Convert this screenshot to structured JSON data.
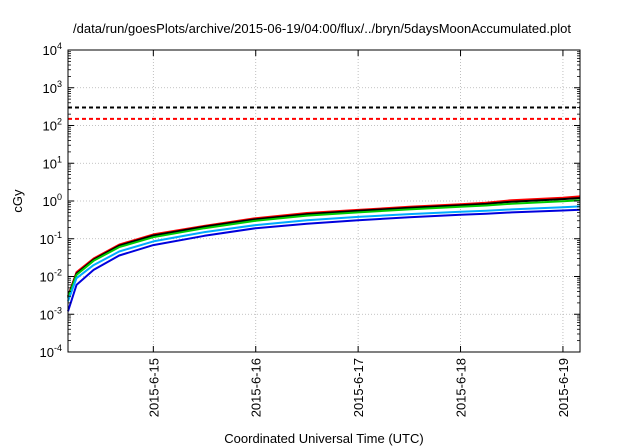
{
  "chart_data": {
    "type": "line",
    "title": "/data/run/goesPlots/archive/2015-06-19/04:00/flux/../bryn/5daysMoonAccumulated.plot",
    "xlabel": "Coordinated Universal Time (UTC)",
    "ylabel": "cGy",
    "y_scale": "log",
    "ylim": [
      0.0001,
      10000
    ],
    "xlim": [
      "2015-06-14T04:00",
      "2015-06-19T04:00"
    ],
    "grid": true,
    "x_ticks": [
      "2015-6-15",
      "2015-6-16",
      "2015-6-17",
      "2015-6-18",
      "2015-6-19"
    ],
    "y_ticks": [
      {
        "base": "10",
        "exp": "-4",
        "value": 0.0001
      },
      {
        "base": "10",
        "exp": "-3",
        "value": 0.001
      },
      {
        "base": "10",
        "exp": "-2",
        "value": 0.01
      },
      {
        "base": "10",
        "exp": "-1",
        "value": 0.1
      },
      {
        "base": "10",
        "exp": "0",
        "value": 1
      },
      {
        "base": "10",
        "exp": "1",
        "value": 10
      },
      {
        "base": "10",
        "exp": "2",
        "value": 100
      },
      {
        "base": "10",
        "exp": "3",
        "value": 1000
      },
      {
        "base": "10",
        "exp": "4",
        "value": 10000
      }
    ],
    "reference_lines": [
      {
        "value": 300,
        "color": "#000000",
        "style": "dashed"
      },
      {
        "value": 150,
        "color": "#ff0000",
        "style": "dashed"
      }
    ],
    "series": [
      {
        "color": "#ff0000",
        "x": [
          "2015-06-14T04:00",
          "2015-06-14T06:00",
          "2015-06-14T10:00",
          "2015-06-14T16:00",
          "2015-06-15T00:00",
          "2015-06-15T12:00",
          "2015-06-16T00:00",
          "2015-06-16T12:00",
          "2015-06-17T00:00",
          "2015-06-17T12:00",
          "2015-06-18T00:00",
          "2015-06-18T06:00",
          "2015-06-18T12:00",
          "2015-06-19T00:00",
          "2015-06-19T04:00"
        ],
        "y": [
          0.003,
          0.013,
          0.03,
          0.07,
          0.13,
          0.22,
          0.35,
          0.48,
          0.58,
          0.7,
          0.82,
          0.9,
          1.05,
          1.22,
          1.32
        ]
      },
      {
        "color": "#000000",
        "x": [
          "2015-06-14T04:00",
          "2015-06-14T06:00",
          "2015-06-14T10:00",
          "2015-06-14T16:00",
          "2015-06-15T00:00",
          "2015-06-15T12:00",
          "2015-06-16T00:00",
          "2015-06-16T12:00",
          "2015-06-17T00:00",
          "2015-06-17T12:00",
          "2015-06-18T00:00",
          "2015-06-18T06:00",
          "2015-06-18T12:00",
          "2015-06-19T00:00",
          "2015-06-19T04:00"
        ],
        "y": [
          0.0029,
          0.012,
          0.028,
          0.066,
          0.122,
          0.21,
          0.33,
          0.45,
          0.55,
          0.66,
          0.77,
          0.84,
          0.96,
          1.12,
          1.2
        ]
      },
      {
        "color": "#00cc00",
        "x": [
          "2015-06-14T04:00",
          "2015-06-14T06:00",
          "2015-06-14T10:00",
          "2015-06-14T16:00",
          "2015-06-15T00:00",
          "2015-06-15T12:00",
          "2015-06-16T00:00",
          "2015-06-16T12:00",
          "2015-06-17T00:00",
          "2015-06-17T12:00",
          "2015-06-18T00:00",
          "2015-06-18T06:00",
          "2015-06-18T12:00",
          "2015-06-19T00:00",
          "2015-06-19T04:00"
        ],
        "y": [
          0.0027,
          0.011,
          0.026,
          0.06,
          0.11,
          0.19,
          0.3,
          0.41,
          0.5,
          0.6,
          0.7,
          0.76,
          0.85,
          0.98,
          1.05
        ]
      },
      {
        "color": "#00aaff",
        "x": [
          "2015-06-14T04:00",
          "2015-06-14T06:00",
          "2015-06-14T10:00",
          "2015-06-14T16:00",
          "2015-06-15T00:00",
          "2015-06-15T12:00",
          "2015-06-16T00:00",
          "2015-06-16T12:00",
          "2015-06-17T00:00",
          "2015-06-17T12:00",
          "2015-06-18T00:00",
          "2015-06-18T06:00",
          "2015-06-18T12:00",
          "2015-06-19T00:00",
          "2015-06-19T04:00"
        ],
        "y": [
          0.0022,
          0.009,
          0.02,
          0.046,
          0.085,
          0.15,
          0.23,
          0.31,
          0.38,
          0.45,
          0.52,
          0.55,
          0.6,
          0.68,
          0.72
        ]
      },
      {
        "color": "#0000dd",
        "x": [
          "2015-06-14T04:00",
          "2015-06-14T06:00",
          "2015-06-14T10:00",
          "2015-06-14T16:00",
          "2015-06-15T00:00",
          "2015-06-15T12:00",
          "2015-06-16T00:00",
          "2015-06-16T12:00",
          "2015-06-17T00:00",
          "2015-06-17T12:00",
          "2015-06-18T00:00",
          "2015-06-18T06:00",
          "2015-06-18T12:00",
          "2015-06-19T00:00",
          "2015-06-19T04:00"
        ],
        "y": [
          0.0012,
          0.006,
          0.015,
          0.036,
          0.068,
          0.12,
          0.19,
          0.25,
          0.31,
          0.37,
          0.43,
          0.46,
          0.5,
          0.56,
          0.59
        ]
      }
    ]
  }
}
